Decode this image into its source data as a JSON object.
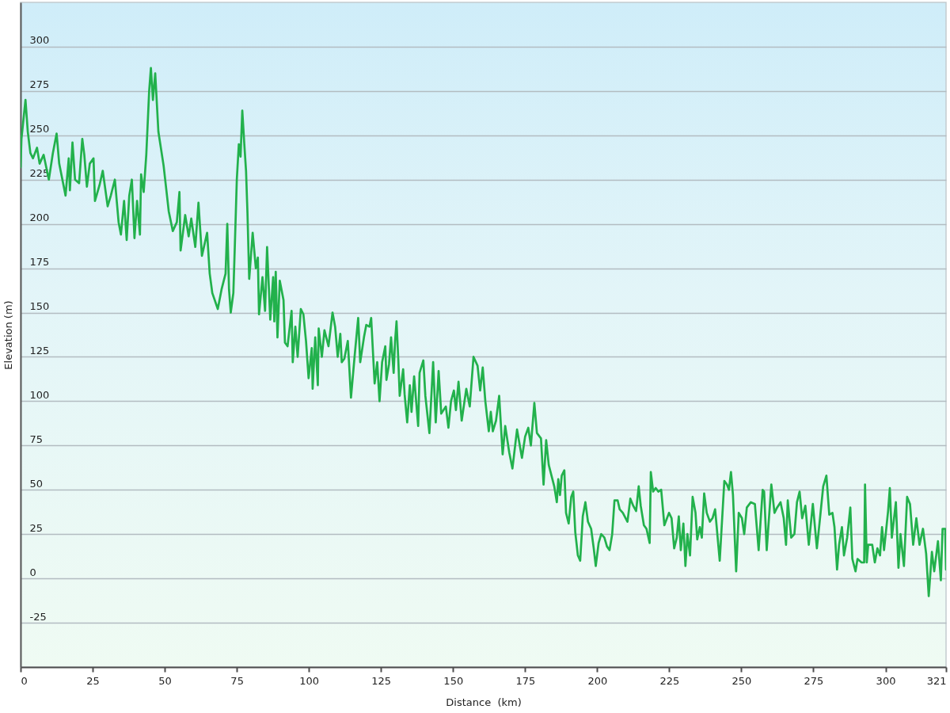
{
  "chart_data": {
    "type": "line",
    "xlabel": "Distance  (km)",
    "ylabel": "Elevation (m)",
    "x": [
      0,
      0.3,
      1.7,
      2.5,
      3.4,
      4.3,
      5.7,
      6.6,
      8.0,
      9.8,
      11.2,
      12.5,
      13.4,
      15.6,
      16.7,
      17.1,
      18.0,
      18.9,
      20.3,
      21.4,
      22.1,
      23.0,
      24.0,
      25.3,
      25.8,
      27.4,
      28.5,
      30.2,
      31.3,
      32.7,
      34.0,
      34.8,
      35.9,
      36.8,
      37.7,
      38.6,
      39.5,
      40.4,
      41.4,
      41.8,
      42.7,
      43.6,
      44.6,
      45.2,
      45.9,
      46.7,
      47.8,
      49.6,
      51.4,
      52.8,
      54.2,
      55.1,
      55.5,
      57.1,
      58.3,
      59.2,
      60.6,
      61.7,
      62.9,
      64.7,
      65.6,
      66.5,
      68.4,
      69.7,
      71.1,
      71.7,
      72.3,
      72.9,
      73.8,
      74.3,
      75.0,
      75.7,
      76.3,
      76.9,
      77.6,
      78.2,
      78.7,
      79.3,
      80.5,
      81.6,
      82.3,
      82.7,
      83.9,
      84.8,
      85.5,
      86.6,
      87.6,
      88.0,
      88.5,
      89.1,
      89.9,
      91.2,
      91.7,
      92.6,
      94.0,
      94.4,
      95.3,
      96.1,
      97.2,
      98.1,
      99.0,
      99.9,
      101.0,
      101.3,
      102.2,
      103.1,
      103.4,
      104.5,
      105.4,
      106.8,
      108.2,
      109.1,
      110.0,
      110.9,
      111.4,
      112.3,
      113.5,
      114.6,
      115.9,
      117.1,
      117.8,
      119.1,
      119.9,
      121.0,
      121.6,
      122.8,
      123.7,
      124.5,
      125.4,
      126.5,
      126.9,
      127.8,
      128.5,
      129.4,
      129.9,
      130.4,
      131.0,
      131.5,
      132.7,
      133.2,
      134.1,
      135.0,
      135.6,
      136.5,
      137.9,
      138.4,
      139.7,
      140.4,
      141.8,
      143.1,
      144.0,
      145.0,
      145.9,
      147.5,
      148.4,
      149.3,
      150.3,
      151.0,
      151.9,
      153.0,
      154.6,
      155.8,
      157.1,
      158.5,
      159.4,
      160.3,
      161.2,
      162.4,
      163.1,
      163.8,
      164.9,
      166.0,
      167.2,
      168.1,
      169.5,
      170.6,
      172.2,
      173.9,
      175.0,
      176.1,
      177.0,
      178.2,
      179.1,
      180.5,
      181.4,
      182.3,
      183.2,
      185.1,
      186.0,
      186.5,
      187.1,
      187.7,
      188.6,
      189.2,
      190.1,
      191.0,
      191.7,
      192.4,
      193.3,
      194.1,
      195.0,
      195.9,
      196.8,
      197.9,
      198.8,
      199.5,
      200.5,
      201.4,
      202.5,
      203.4,
      204.3,
      205.2,
      206.0,
      207.1,
      207.8,
      208.9,
      210.5,
      211.5,
      212.5,
      213.5,
      214.4,
      215.1,
      216.2,
      217.1,
      218.2,
      218.6,
      219.4,
      220.3,
      221.2,
      222.2,
      223.3,
      224.9,
      225.8,
      226.7,
      227.6,
      228.3,
      229.0,
      229.9,
      230.6,
      231.3,
      232.2,
      233.1,
      234.1,
      234.7,
      235.6,
      236.3,
      237.1,
      238.0,
      239.1,
      240.0,
      240.9,
      242.5,
      244.1,
      245.0,
      245.7,
      246.4,
      247.1,
      248.2,
      249.1,
      250.2,
      251.0,
      251.9,
      253.3,
      254.7,
      256.0,
      257.4,
      257.9,
      258.8,
      260.4,
      261.5,
      262.4,
      263.6,
      264.7,
      265.5,
      266.1,
      267.3,
      268.4,
      269.3,
      270.2,
      271.1,
      272.2,
      273.4,
      274.8,
      276.2,
      277.1,
      278.4,
      279.5,
      280.5,
      281.6,
      282.3,
      283.2,
      283.9,
      284.9,
      285.6,
      286.7,
      287.8,
      288.5,
      289.6,
      290.3,
      291.7,
      292.6,
      292.9,
      293.5,
      294.0,
      295.4,
      296.3,
      297.2,
      298.1,
      298.8,
      299.5,
      300.9,
      301.5,
      302.2,
      303.6,
      304.5,
      305.2,
      306.4,
      307.5,
      308.5,
      309.6,
      310.7,
      311.8,
      313.0,
      314.1,
      315.0,
      316.1,
      316.9,
      318.2,
      319.2,
      319.8,
      320.7,
      321.0
    ],
    "series": [
      {
        "color": "#22b14c",
        "values": [
          232,
          248,
          270,
          252,
          240,
          237,
          243,
          234,
          239,
          225,
          240,
          251,
          234,
          216,
          237,
          219,
          246,
          225,
          223,
          248,
          239,
          221,
          234,
          237,
          213,
          222,
          230,
          210,
          216,
          225,
          201,
          194,
          213,
          191,
          216,
          225,
          192,
          213,
          194,
          228,
          218,
          239,
          275,
          288,
          270,
          285,
          252,
          233,
          207,
          196,
          201,
          218,
          185,
          205,
          193,
          203,
          187,
          212,
          182,
          195,
          172,
          161,
          152,
          163,
          172,
          200,
          163,
          150,
          161,
          187,
          225,
          245,
          238,
          264,
          245,
          230,
          206,
          169,
          195,
          175,
          181,
          149,
          170,
          151,
          187,
          146,
          170,
          145,
          173,
          136,
          168,
          157,
          133,
          131,
          151,
          122,
          142,
          125,
          152,
          149,
          134,
          113,
          130,
          107,
          136,
          109,
          141,
          125,
          140,
          131,
          150,
          142,
          125,
          138,
          122,
          124,
          134,
          102,
          126,
          147,
          122,
          136,
          143,
          142,
          147,
          110,
          122,
          100,
          122,
          131,
          112,
          121,
          136,
          116,
          134,
          145,
          124,
          103,
          118,
          104,
          88,
          109,
          94,
          114,
          86,
          116,
          123,
          103,
          82,
          122,
          88,
          117,
          93,
          97,
          85,
          100,
          106,
          95,
          111,
          89,
          107,
          97,
          125,
          120,
          106,
          119,
          100,
          83,
          94,
          83,
          89,
          103,
          70,
          86,
          71,
          62,
          84,
          68,
          80,
          85,
          75,
          99,
          82,
          79,
          53,
          78,
          64,
          52,
          43,
          56,
          47,
          58,
          61,
          37,
          31,
          46,
          49,
          26,
          13,
          10,
          35,
          43,
          32,
          28,
          17,
          7,
          20,
          25,
          23,
          18,
          16,
          25,
          44,
          44,
          39,
          37,
          32,
          45,
          41,
          38,
          52,
          41,
          30,
          28,
          20,
          60,
          49,
          51,
          49,
          50,
          30,
          37,
          34,
          17,
          23,
          35,
          16,
          31,
          7,
          25,
          13,
          46,
          37,
          22,
          29,
          23,
          48,
          37,
          32,
          34,
          39,
          10,
          55,
          53,
          50,
          60,
          47,
          4,
          37,
          34,
          25,
          40,
          43,
          42,
          16,
          50,
          49,
          16,
          53,
          37,
          40,
          43,
          34,
          19,
          44,
          23,
          25,
          43,
          49,
          34,
          41,
          19,
          42,
          17,
          31,
          52,
          58,
          36,
          37,
          29,
          5,
          19,
          29,
          13,
          23,
          40,
          11,
          4,
          11,
          9,
          9,
          53,
          9,
          19,
          19,
          9,
          17,
          13,
          29,
          16,
          38,
          51,
          23,
          43,
          6,
          25,
          7,
          46,
          42,
          19,
          34,
          19,
          28,
          14,
          -10,
          15,
          4,
          21,
          -1,
          28,
          28,
          5
        ]
      }
    ],
    "xlim": [
      0,
      321
    ],
    "xticks": [
      0,
      25,
      50,
      75,
      100,
      125,
      150,
      175,
      200,
      225,
      250,
      275,
      300,
      321
    ],
    "ylim": [
      -50,
      325
    ],
    "yticks": [
      -25,
      0,
      25,
      50,
      75,
      100,
      125,
      150,
      175,
      200,
      225,
      250,
      275,
      300
    ],
    "grid": "y"
  }
}
